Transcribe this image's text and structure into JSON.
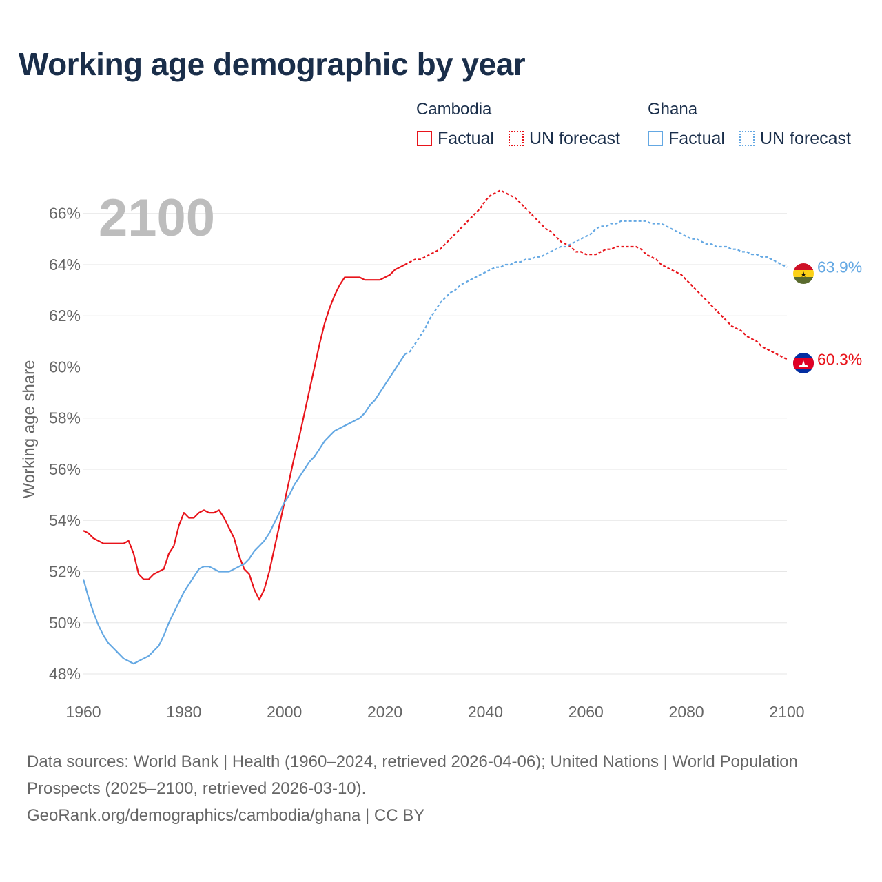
{
  "colors": {
    "cambodia": "#e8141b",
    "ghana": "#64a8e3",
    "title": "#1a2e4a",
    "axis_text": "#666666",
    "grid": "#e6e6e6",
    "year_overlay": "#bdbdbd"
  },
  "legend": {
    "cambodia_title": "Cambodia",
    "ghana_title": "Ghana",
    "factual_label": "Factual",
    "forecast_label": "UN forecast"
  },
  "footer": {
    "sources": "Data sources: World Bank | Health (1960–2024, retrieved 2026-04-06); United Nations | World Population Prospects (2025–2100, retrieved 2026-03-10).",
    "attribution": "GeoRank.org/demographics/cambodia/ghana | CC BY"
  },
  "chart_data": {
    "type": "line",
    "title": "Working age demographic by year",
    "current_year_label": "2100",
    "xlabel": "",
    "ylabel": "Working age share",
    "xlim": [
      1960,
      2100
    ],
    "ylim": [
      47.3,
      67.5
    ],
    "x_ticks": [
      1960,
      1980,
      2000,
      2020,
      2040,
      2060,
      2080,
      2100
    ],
    "x_tick_labels": [
      "1960",
      "1980",
      "2000",
      "2020",
      "2040",
      "2060",
      "2080",
      "2100"
    ],
    "y_ticks": [
      48,
      50,
      52,
      54,
      56,
      58,
      60,
      62,
      64,
      66
    ],
    "y_tick_labels": [
      "48%",
      "50%",
      "52%",
      "54%",
      "56%",
      "58%",
      "60%",
      "62%",
      "64%",
      "66%"
    ],
    "factual_end_year": 2024,
    "series": [
      {
        "name": "Cambodia",
        "color": "#e8141b",
        "end_label": "60.3%",
        "flag": "cambodia-flag",
        "points": [
          [
            1960,
            53.6
          ],
          [
            1961,
            53.5
          ],
          [
            1962,
            53.3
          ],
          [
            1963,
            53.2
          ],
          [
            1964,
            53.1
          ],
          [
            1965,
            53.1
          ],
          [
            1966,
            53.1
          ],
          [
            1967,
            53.1
          ],
          [
            1968,
            53.1
          ],
          [
            1969,
            53.2
          ],
          [
            1970,
            52.7
          ],
          [
            1971,
            51.9
          ],
          [
            1972,
            51.7
          ],
          [
            1973,
            51.7
          ],
          [
            1974,
            51.9
          ],
          [
            1975,
            52.0
          ],
          [
            1976,
            52.1
          ],
          [
            1977,
            52.7
          ],
          [
            1978,
            53.0
          ],
          [
            1979,
            53.8
          ],
          [
            1980,
            54.3
          ],
          [
            1981,
            54.1
          ],
          [
            1982,
            54.1
          ],
          [
            1983,
            54.3
          ],
          [
            1984,
            54.4
          ],
          [
            1985,
            54.3
          ],
          [
            1986,
            54.3
          ],
          [
            1987,
            54.4
          ],
          [
            1988,
            54.1
          ],
          [
            1989,
            53.7
          ],
          [
            1990,
            53.3
          ],
          [
            1991,
            52.6
          ],
          [
            1992,
            52.1
          ],
          [
            1993,
            51.9
          ],
          [
            1994,
            51.3
          ],
          [
            1995,
            50.9
          ],
          [
            1996,
            51.3
          ],
          [
            1997,
            52.0
          ],
          [
            1998,
            52.9
          ],
          [
            1999,
            53.8
          ],
          [
            2000,
            54.7
          ],
          [
            2001,
            55.6
          ],
          [
            2002,
            56.5
          ],
          [
            2003,
            57.3
          ],
          [
            2004,
            58.2
          ],
          [
            2005,
            59.1
          ],
          [
            2006,
            60.0
          ],
          [
            2007,
            60.9
          ],
          [
            2008,
            61.7
          ],
          [
            2009,
            62.3
          ],
          [
            2010,
            62.8
          ],
          [
            2011,
            63.2
          ],
          [
            2012,
            63.5
          ],
          [
            2013,
            63.5
          ],
          [
            2014,
            63.5
          ],
          [
            2015,
            63.5
          ],
          [
            2016,
            63.4
          ],
          [
            2017,
            63.4
          ],
          [
            2018,
            63.4
          ],
          [
            2019,
            63.4
          ],
          [
            2020,
            63.5
          ],
          [
            2021,
            63.6
          ],
          [
            2022,
            63.8
          ],
          [
            2023,
            63.9
          ],
          [
            2024,
            64.0
          ],
          [
            2025,
            64.1
          ],
          [
            2026,
            64.2
          ],
          [
            2027,
            64.2
          ],
          [
            2028,
            64.3
          ],
          [
            2029,
            64.4
          ],
          [
            2030,
            64.5
          ],
          [
            2031,
            64.6
          ],
          [
            2032,
            64.8
          ],
          [
            2033,
            65.0
          ],
          [
            2034,
            65.2
          ],
          [
            2035,
            65.4
          ],
          [
            2036,
            65.6
          ],
          [
            2037,
            65.8
          ],
          [
            2038,
            66.0
          ],
          [
            2039,
            66.2
          ],
          [
            2040,
            66.5
          ],
          [
            2041,
            66.7
          ],
          [
            2042,
            66.8
          ],
          [
            2043,
            66.9
          ],
          [
            2044,
            66.8
          ],
          [
            2045,
            66.7
          ],
          [
            2046,
            66.6
          ],
          [
            2047,
            66.4
          ],
          [
            2048,
            66.2
          ],
          [
            2049,
            66.0
          ],
          [
            2050,
            65.8
          ],
          [
            2051,
            65.6
          ],
          [
            2052,
            65.4
          ],
          [
            2053,
            65.3
          ],
          [
            2054,
            65.1
          ],
          [
            2055,
            64.9
          ],
          [
            2056,
            64.8
          ],
          [
            2057,
            64.7
          ],
          [
            2058,
            64.5
          ],
          [
            2059,
            64.5
          ],
          [
            2060,
            64.4
          ],
          [
            2061,
            64.4
          ],
          [
            2062,
            64.4
          ],
          [
            2063,
            64.5
          ],
          [
            2064,
            64.6
          ],
          [
            2065,
            64.6
          ],
          [
            2066,
            64.7
          ],
          [
            2067,
            64.7
          ],
          [
            2068,
            64.7
          ],
          [
            2069,
            64.7
          ],
          [
            2070,
            64.7
          ],
          [
            2071,
            64.6
          ],
          [
            2072,
            64.4
          ],
          [
            2073,
            64.3
          ],
          [
            2074,
            64.2
          ],
          [
            2075,
            64.0
          ],
          [
            2076,
            63.9
          ],
          [
            2077,
            63.8
          ],
          [
            2078,
            63.7
          ],
          [
            2079,
            63.6
          ],
          [
            2080,
            63.4
          ],
          [
            2081,
            63.2
          ],
          [
            2082,
            63.0
          ],
          [
            2083,
            62.8
          ],
          [
            2084,
            62.6
          ],
          [
            2085,
            62.4
          ],
          [
            2086,
            62.2
          ],
          [
            2087,
            62.0
          ],
          [
            2088,
            61.8
          ],
          [
            2089,
            61.6
          ],
          [
            2090,
            61.5
          ],
          [
            2091,
            61.4
          ],
          [
            2092,
            61.2
          ],
          [
            2093,
            61.1
          ],
          [
            2094,
            61.0
          ],
          [
            2095,
            60.8
          ],
          [
            2096,
            60.7
          ],
          [
            2097,
            60.6
          ],
          [
            2098,
            60.5
          ],
          [
            2099,
            60.4
          ],
          [
            2100,
            60.3
          ]
        ]
      },
      {
        "name": "Ghana",
        "color": "#64a8e3",
        "end_label": "63.9%",
        "flag": "ghana-flag",
        "points": [
          [
            1960,
            51.7
          ],
          [
            1961,
            51.0
          ],
          [
            1962,
            50.4
          ],
          [
            1963,
            49.9
          ],
          [
            1964,
            49.5
          ],
          [
            1965,
            49.2
          ],
          [
            1966,
            49.0
          ],
          [
            1967,
            48.8
          ],
          [
            1968,
            48.6
          ],
          [
            1969,
            48.5
          ],
          [
            1970,
            48.4
          ],
          [
            1971,
            48.5
          ],
          [
            1972,
            48.6
          ],
          [
            1973,
            48.7
          ],
          [
            1974,
            48.9
          ],
          [
            1975,
            49.1
          ],
          [
            1976,
            49.5
          ],
          [
            1977,
            50.0
          ],
          [
            1978,
            50.4
          ],
          [
            1979,
            50.8
          ],
          [
            1980,
            51.2
          ],
          [
            1981,
            51.5
          ],
          [
            1982,
            51.8
          ],
          [
            1983,
            52.1
          ],
          [
            1984,
            52.2
          ],
          [
            1985,
            52.2
          ],
          [
            1986,
            52.1
          ],
          [
            1987,
            52.0
          ],
          [
            1988,
            52.0
          ],
          [
            1989,
            52.0
          ],
          [
            1990,
            52.1
          ],
          [
            1991,
            52.2
          ],
          [
            1992,
            52.3
          ],
          [
            1993,
            52.5
          ],
          [
            1994,
            52.8
          ],
          [
            1995,
            53.0
          ],
          [
            1996,
            53.2
          ],
          [
            1997,
            53.5
          ],
          [
            1998,
            53.9
          ],
          [
            1999,
            54.3
          ],
          [
            2000,
            54.7
          ],
          [
            2001,
            55.0
          ],
          [
            2002,
            55.4
          ],
          [
            2003,
            55.7
          ],
          [
            2004,
            56.0
          ],
          [
            2005,
            56.3
          ],
          [
            2006,
            56.5
          ],
          [
            2007,
            56.8
          ],
          [
            2008,
            57.1
          ],
          [
            2009,
            57.3
          ],
          [
            2010,
            57.5
          ],
          [
            2011,
            57.6
          ],
          [
            2012,
            57.7
          ],
          [
            2013,
            57.8
          ],
          [
            2014,
            57.9
          ],
          [
            2015,
            58.0
          ],
          [
            2016,
            58.2
          ],
          [
            2017,
            58.5
          ],
          [
            2018,
            58.7
          ],
          [
            2019,
            59.0
          ],
          [
            2020,
            59.3
          ],
          [
            2021,
            59.6
          ],
          [
            2022,
            59.9
          ],
          [
            2023,
            60.2
          ],
          [
            2024,
            60.5
          ],
          [
            2025,
            60.6
          ],
          [
            2026,
            60.9
          ],
          [
            2027,
            61.2
          ],
          [
            2028,
            61.5
          ],
          [
            2029,
            61.9
          ],
          [
            2030,
            62.2
          ],
          [
            2031,
            62.5
          ],
          [
            2032,
            62.7
          ],
          [
            2033,
            62.9
          ],
          [
            2034,
            63.0
          ],
          [
            2035,
            63.2
          ],
          [
            2036,
            63.3
          ],
          [
            2037,
            63.4
          ],
          [
            2038,
            63.5
          ],
          [
            2039,
            63.6
          ],
          [
            2040,
            63.7
          ],
          [
            2041,
            63.8
          ],
          [
            2042,
            63.9
          ],
          [
            2043,
            63.9
          ],
          [
            2044,
            64.0
          ],
          [
            2045,
            64.0
          ],
          [
            2046,
            64.1
          ],
          [
            2047,
            64.1
          ],
          [
            2048,
            64.2
          ],
          [
            2049,
            64.2
          ],
          [
            2050,
            64.3
          ],
          [
            2051,
            64.3
          ],
          [
            2052,
            64.4
          ],
          [
            2053,
            64.5
          ],
          [
            2054,
            64.6
          ],
          [
            2055,
            64.7
          ],
          [
            2056,
            64.7
          ],
          [
            2057,
            64.8
          ],
          [
            2058,
            64.9
          ],
          [
            2059,
            65.0
          ],
          [
            2060,
            65.1
          ],
          [
            2061,
            65.2
          ],
          [
            2062,
            65.4
          ],
          [
            2063,
            65.5
          ],
          [
            2064,
            65.5
          ],
          [
            2065,
            65.6
          ],
          [
            2066,
            65.6
          ],
          [
            2067,
            65.7
          ],
          [
            2068,
            65.7
          ],
          [
            2069,
            65.7
          ],
          [
            2070,
            65.7
          ],
          [
            2071,
            65.7
          ],
          [
            2072,
            65.7
          ],
          [
            2073,
            65.6
          ],
          [
            2074,
            65.6
          ],
          [
            2075,
            65.6
          ],
          [
            2076,
            65.5
          ],
          [
            2077,
            65.4
          ],
          [
            2078,
            65.3
          ],
          [
            2079,
            65.2
          ],
          [
            2080,
            65.1
          ],
          [
            2081,
            65.0
          ],
          [
            2082,
            65.0
          ],
          [
            2083,
            64.9
          ],
          [
            2084,
            64.8
          ],
          [
            2085,
            64.8
          ],
          [
            2086,
            64.7
          ],
          [
            2087,
            64.7
          ],
          [
            2088,
            64.7
          ],
          [
            2089,
            64.6
          ],
          [
            2090,
            64.6
          ],
          [
            2091,
            64.5
          ],
          [
            2092,
            64.5
          ],
          [
            2093,
            64.4
          ],
          [
            2094,
            64.4
          ],
          [
            2095,
            64.3
          ],
          [
            2096,
            64.3
          ],
          [
            2097,
            64.2
          ],
          [
            2098,
            64.1
          ],
          [
            2099,
            64.0
          ],
          [
            2100,
            63.9
          ]
        ]
      }
    ]
  }
}
